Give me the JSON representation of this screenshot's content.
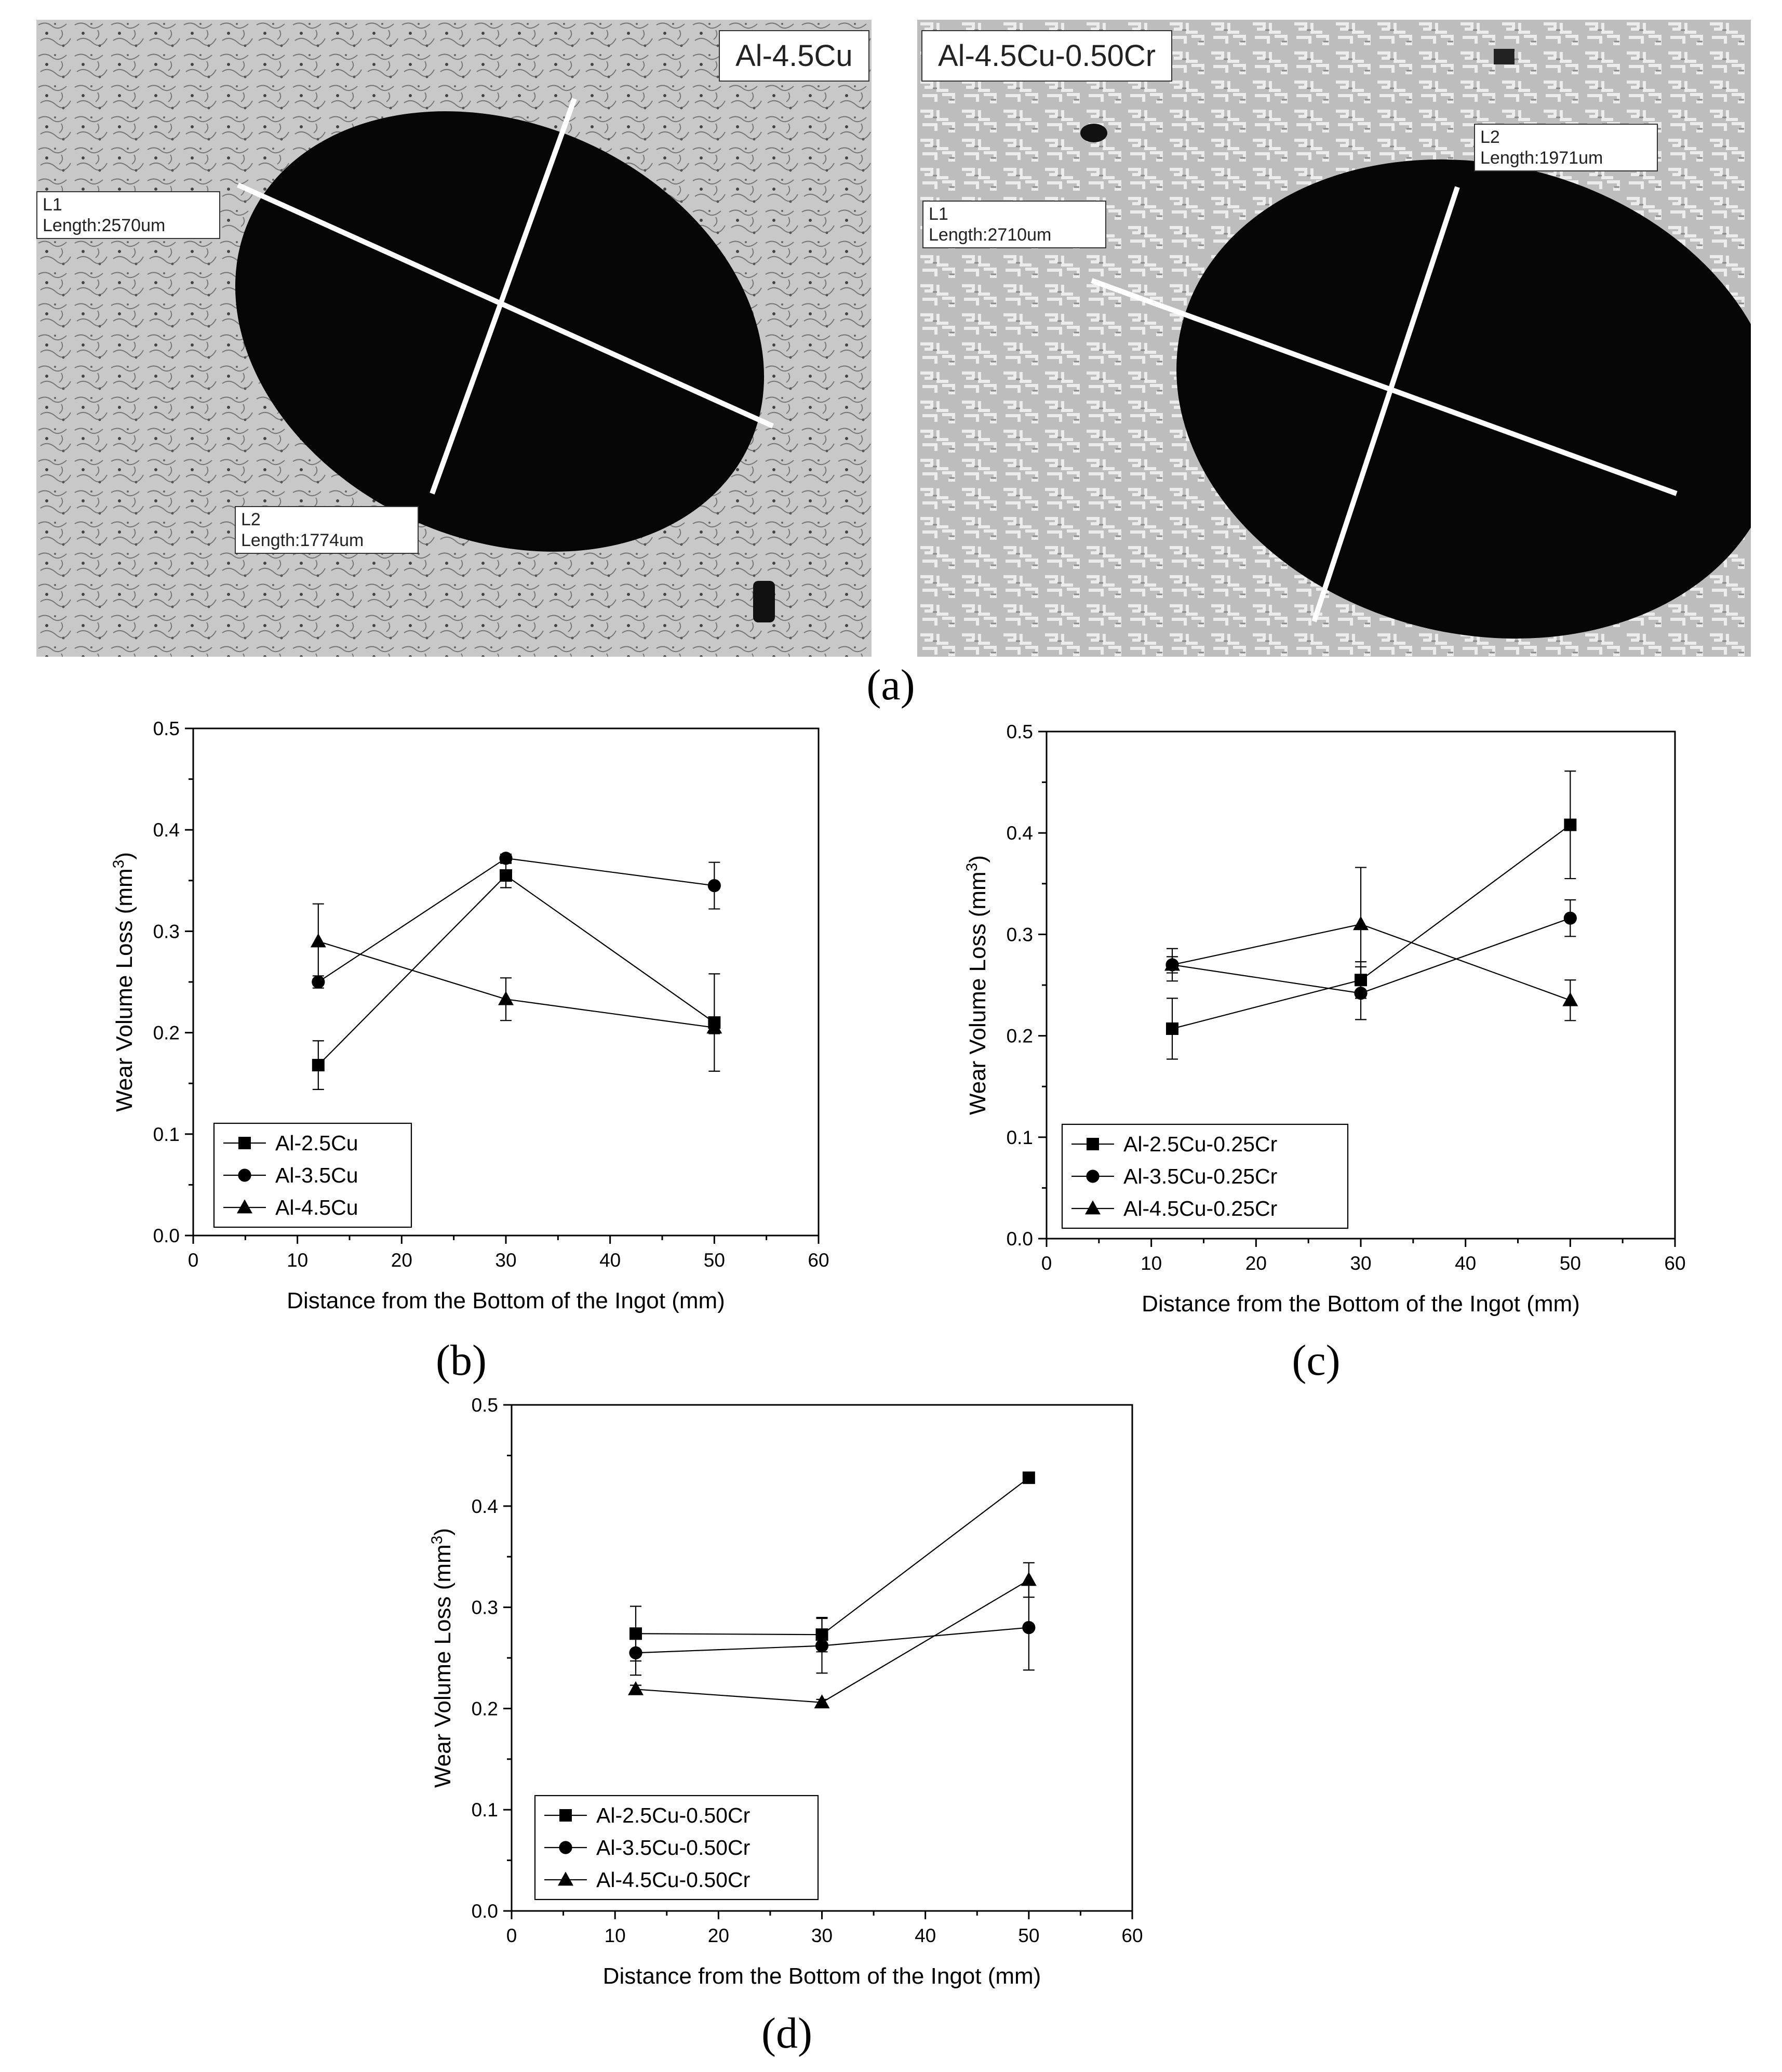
{
  "figure": {
    "panel_labels": [
      "(a)",
      "(b)",
      "(c)",
      "(d)"
    ],
    "micrographs": [
      {
        "sample_label": "Al-4.5Cu",
        "measurements": [
          {
            "name": "L1",
            "length_text": "Length:2570um"
          },
          {
            "name": "L2",
            "length_text": "Length:1774um"
          }
        ]
      },
      {
        "sample_label": "Al-4.5Cu-0.50Cr",
        "measurements": [
          {
            "name": "L1",
            "length_text": "Length:2710um"
          },
          {
            "name": "L2",
            "length_text": "Length:1971um"
          }
        ]
      }
    ]
  },
  "chart_data": [
    {
      "type": "line",
      "panel": "(b)",
      "xlabel": "Distance from the Bottom of the Ingot (mm)",
      "ylabel": "Wear Volume Loss (mm",
      "ylabel_sup": "3",
      "ylabel_end": ")",
      "xlim": [
        0,
        60
      ],
      "ylim": [
        0,
        0.5
      ],
      "xticks": [
        "0",
        "10",
        "20",
        "30",
        "40",
        "50",
        "60"
      ],
      "yticks": [
        "0.0",
        "0.1",
        "0.2",
        "0.3",
        "0.4",
        "0.5"
      ],
      "legend_position": "bottom-left",
      "grid": false,
      "x": [
        12,
        30,
        50
      ],
      "series": [
        {
          "name": "Al-2.5Cu",
          "marker": "square",
          "values": [
            0.168,
            0.355,
            0.21
          ],
          "errors": [
            0.024,
            0.012,
            0.048
          ]
        },
        {
          "name": "Al-3.5Cu",
          "marker": "circle",
          "values": [
            0.25,
            0.372,
            0.345
          ],
          "errors": [
            0.006,
            0.004,
            0.023
          ]
        },
        {
          "name": "Al-4.5Cu",
          "marker": "triangle",
          "values": [
            0.29,
            0.233,
            0.205
          ],
          "errors": [
            0.037,
            0.021,
            0.006
          ]
        }
      ]
    },
    {
      "type": "line",
      "panel": "(c)",
      "xlabel": "Distance from the Bottom of the Ingot (mm)",
      "ylabel": "Wear Volume Loss (mm",
      "ylabel_sup": "3",
      "ylabel_end": ")",
      "xlim": [
        0,
        60
      ],
      "ylim": [
        0,
        0.5
      ],
      "xticks": [
        "0",
        "10",
        "20",
        "30",
        "40",
        "50",
        "60"
      ],
      "yticks": [
        "0.0",
        "0.1",
        "0.2",
        "0.3",
        "0.4",
        "0.5"
      ],
      "legend_position": "bottom-left",
      "grid": false,
      "x": [
        12,
        30,
        50
      ],
      "series": [
        {
          "name": "Al-2.5Cu-0.25Cr",
          "marker": "square",
          "values": [
            0.207,
            0.255,
            0.408
          ],
          "errors": [
            0.03,
            0.018,
            0.053
          ]
        },
        {
          "name": "Al-3.5Cu-0.25Cr",
          "marker": "circle",
          "values": [
            0.27,
            0.242,
            0.316
          ],
          "errors": [
            0.016,
            0.026,
            0.018
          ]
        },
        {
          "name": "Al-4.5Cu-0.25Cr",
          "marker": "triangle",
          "values": [
            0.27,
            0.31,
            0.235
          ],
          "errors": [
            0.008,
            0.056,
            0.02
          ]
        }
      ]
    },
    {
      "type": "line",
      "panel": "(d)",
      "xlabel": "Distance from the Bottom of the Ingot (mm)",
      "ylabel": "Wear Volume Loss (mm",
      "ylabel_sup": "3",
      "ylabel_end": ")",
      "xlim": [
        0,
        60
      ],
      "ylim": [
        0,
        0.5
      ],
      "xticks": [
        "0",
        "10",
        "20",
        "30",
        "40",
        "50",
        "60"
      ],
      "yticks": [
        "0.0",
        "0.1",
        "0.2",
        "0.3",
        "0.4",
        "0.5"
      ],
      "legend_position": "bottom-left",
      "grid": false,
      "x": [
        12,
        30,
        50
      ],
      "series": [
        {
          "name": "Al-2.5Cu-0.50Cr",
          "marker": "square",
          "values": [
            0.274,
            0.273,
            0.428
          ],
          "errors": [
            0.027,
            0.017,
            0.003
          ]
        },
        {
          "name": "Al-3.5Cu-0.50Cr",
          "marker": "circle",
          "values": [
            0.255,
            0.262,
            0.28
          ],
          "errors": [
            0.022,
            0.027,
            0.042
          ]
        },
        {
          "name": "Al-4.5Cu-0.50Cr",
          "marker": "triangle",
          "values": [
            0.219,
            0.206,
            0.327
          ],
          "errors": [
            0.004,
            0.003,
            0.017
          ]
        }
      ]
    }
  ]
}
